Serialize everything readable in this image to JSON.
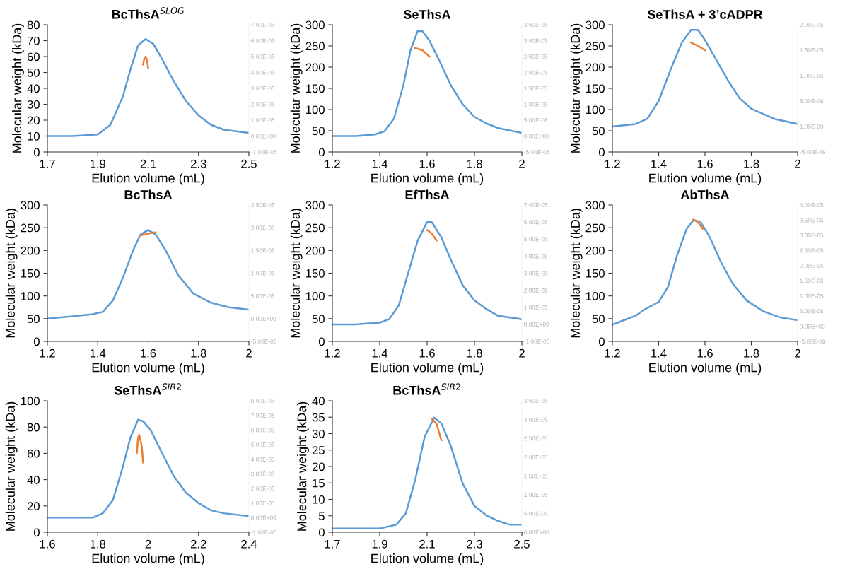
{
  "chart_data": [
    {
      "type": "line",
      "title": "BcThsA$^{SLOG}$",
      "xlabel": "Elution volume (mL)",
      "ylabel": "Molecular weight (kDa)",
      "grid": false,
      "xlim": [
        1.7,
        2.5
      ],
      "xticks": [
        1.7,
        1.9,
        2.1,
        2.3,
        2.5
      ],
      "ylim": [
        0,
        80
      ],
      "yticks": [
        0,
        10,
        20,
        30,
        40,
        50,
        60,
        70,
        80
      ],
      "y2lim": [
        -1e-05,
        7e-05
      ],
      "y2ticks": [
        {
          "value": -1e-05,
          "label": "-1.00E-05"
        },
        {
          "value": 0,
          "label": "0.00E+00"
        },
        {
          "value": 1e-05,
          "label": "1.00E-05"
        },
        {
          "value": 2e-05,
          "label": "2.00E-05"
        },
        {
          "value": 3e-05,
          "label": "3.00E-05"
        },
        {
          "value": 4e-05,
          "label": "4.00E-05"
        },
        {
          "value": 5e-05,
          "label": "5.00E-05"
        },
        {
          "value": 6e-05,
          "label": "6.00E-05"
        },
        {
          "value": 7e-05,
          "label": "7.00E-05"
        }
      ],
      "series": [
        {
          "color": "#5b9bd5",
          "axis": "y2",
          "x": [
            1.7,
            1.8,
            1.9,
            1.95,
            2.0,
            2.03,
            2.06,
            2.09,
            2.12,
            2.15,
            2.2,
            2.25,
            2.3,
            2.35,
            2.4,
            2.45,
            2.5
          ],
          "values": [
            0,
            0,
            1e-06,
            7e-06,
            2.5e-05,
            4.2e-05,
            5.7e-05,
            6.1e-05,
            5.8e-05,
            5e-05,
            3.5e-05,
            2.2e-05,
            1.3e-05,
            7e-06,
            4e-06,
            3e-06,
            2e-06
          ]
        },
        {
          "color": "#ed7d31",
          "axis": "y",
          "x": [
            2.08,
            2.085,
            2.09,
            2.095,
            2.1
          ],
          "values": [
            55,
            59,
            60,
            58,
            53
          ]
        }
      ]
    },
    {
      "type": "line",
      "title": "SeThsA",
      "xlabel": "Elution volume (mL)",
      "ylabel": "Molecular weight (kDa)",
      "grid": false,
      "xlim": [
        1.2,
        2
      ],
      "xticks": [
        1.2,
        1.4,
        1.6,
        1.8,
        2
      ],
      "ylim": [
        0,
        300
      ],
      "yticks": [
        0,
        50,
        100,
        150,
        200,
        250,
        300
      ],
      "y2lim": [
        -5e-06,
        3.5e-05
      ],
      "y2ticks": [
        {
          "value": -5e-06,
          "label": "-5.00E-06"
        },
        {
          "value": 0,
          "label": "0.00E+00"
        },
        {
          "value": 5e-06,
          "label": "5.00E-06"
        },
        {
          "value": 1e-05,
          "label": "1.00E-05"
        },
        {
          "value": 1.5e-05,
          "label": "1.50E-05"
        },
        {
          "value": 2e-05,
          "label": "2.00E-05"
        },
        {
          "value": 2.5e-05,
          "label": "2.50E-05"
        },
        {
          "value": 3e-05,
          "label": "3.00E-05"
        },
        {
          "value": 3.5e-05,
          "label": "3.50E-05"
        }
      ],
      "series": [
        {
          "color": "#5b9bd5",
          "axis": "y2",
          "x": [
            1.2,
            1.3,
            1.38,
            1.42,
            1.46,
            1.5,
            1.53,
            1.56,
            1.58,
            1.61,
            1.65,
            1.7,
            1.75,
            1.8,
            1.85,
            1.9,
            2.0
          ],
          "values": [
            0,
            0,
            5e-07,
            1.5e-06,
            5.5e-06,
            1.6e-05,
            2.7e-05,
            3.3e-05,
            3.3e-05,
            3e-05,
            2.4e-05,
            1.6e-05,
            1e-05,
            6e-06,
            4e-06,
            2.5e-06,
            1e-06
          ]
        },
        {
          "color": "#ed7d31",
          "axis": "y",
          "x": [
            1.55,
            1.58,
            1.61
          ],
          "values": [
            245,
            240,
            225
          ]
        }
      ]
    },
    {
      "type": "line",
      "title": "SeThsA + 3’cADPR",
      "xlabel": "Elution volume (mL)",
      "ylabel": "Molecular weight (kDa)",
      "grid": false,
      "xlim": [
        1.2,
        2
      ],
      "xticks": [
        1.2,
        1.4,
        1.6,
        1.8,
        2
      ],
      "ylim": [
        0,
        300
      ],
      "yticks": [
        0,
        50,
        100,
        150,
        200,
        250,
        300
      ],
      "y2lim": [
        -5e-06,
        2e-05
      ],
      "y2ticks": [
        {
          "value": -5e-06,
          "label": "-5.00E-06"
        },
        {
          "value": 0,
          "label": "1.00E-20"
        },
        {
          "value": 5e-06,
          "label": "5.00E-06"
        },
        {
          "value": 1e-05,
          "label": "1.00E-05"
        },
        {
          "value": 1.5e-05,
          "label": "1.50E-05"
        },
        {
          "value": 2e-05,
          "label": "2.00E-05"
        }
      ],
      "series": [
        {
          "color": "#5b9bd5",
          "axis": "y2",
          "x": [
            1.2,
            1.3,
            1.35,
            1.4,
            1.45,
            1.5,
            1.54,
            1.57,
            1.6,
            1.65,
            1.7,
            1.75,
            1.8,
            1.9,
            2.0
          ],
          "values": [
            0,
            5e-07,
            1.5e-06,
            5e-06,
            1.1e-05,
            1.65e-05,
            1.9e-05,
            1.9e-05,
            1.7e-05,
            1.3e-05,
            9e-06,
            5.5e-06,
            3.5e-06,
            1.5e-06,
            5e-07
          ]
        },
        {
          "color": "#ed7d31",
          "axis": "y",
          "x": [
            1.54,
            1.57,
            1.6
          ],
          "values": [
            258,
            250,
            240
          ]
        }
      ]
    },
    {
      "type": "line",
      "title": "BcThsA",
      "xlabel": "Elution volume (mL)",
      "ylabel": "Molecular weight (kDa)",
      "grid": false,
      "xlim": [
        1.2,
        2
      ],
      "xticks": [
        1.2,
        1.4,
        1.6,
        1.8,
        2
      ],
      "ylim": [
        0,
        300
      ],
      "yticks": [
        0,
        50,
        100,
        150,
        200,
        250,
        300
      ],
      "y2lim": [
        -5e-06,
        2.5e-05
      ],
      "y2ticks": [
        {
          "value": -5e-06,
          "label": "-5.00E-06"
        },
        {
          "value": 0,
          "label": "0.00E+00"
        },
        {
          "value": 5e-06,
          "label": "5.00E-06"
        },
        {
          "value": 1e-05,
          "label": "1.00E-05"
        },
        {
          "value": 1.5e-05,
          "label": "1.50E-05"
        },
        {
          "value": 2e-05,
          "label": "2.00E-05"
        },
        {
          "value": 2.5e-05,
          "label": "2.50E-05"
        }
      ],
      "series": [
        {
          "color": "#5b9bd5",
          "axis": "y2",
          "x": [
            1.2,
            1.3,
            1.38,
            1.42,
            1.46,
            1.5,
            1.54,
            1.57,
            1.6,
            1.63,
            1.67,
            1.72,
            1.78,
            1.85,
            1.92,
            2.0
          ],
          "values": [
            0,
            5e-07,
            1e-06,
            1.5e-06,
            4e-06,
            9e-06,
            1.5e-05,
            1.85e-05,
            1.95e-05,
            1.85e-05,
            1.5e-05,
            9.5e-06,
            5.5e-06,
            3.5e-06,
            2.5e-06,
            2e-06
          ]
        },
        {
          "color": "#ed7d31",
          "axis": "y",
          "x": [
            1.57,
            1.6,
            1.63
          ],
          "values": [
            233,
            237,
            240
          ]
        }
      ]
    },
    {
      "type": "line",
      "title": "EfThsA",
      "xlabel": "Elution volume (mL)",
      "ylabel": "Molecular weight (kDa)",
      "grid": false,
      "xlim": [
        1.2,
        2
      ],
      "xticks": [
        1.2,
        1.4,
        1.6,
        1.8,
        2
      ],
      "ylim": [
        0,
        300
      ],
      "yticks": [
        0,
        50,
        100,
        150,
        200,
        250,
        300
      ],
      "y2lim": [
        -1e-05,
        7e-05
      ],
      "y2ticks": [
        {
          "value": -1e-05,
          "label": "-1.00E-05"
        },
        {
          "value": 0,
          "label": "0.00E+00"
        },
        {
          "value": 1e-05,
          "label": "1.00E-05"
        },
        {
          "value": 2e-05,
          "label": "2.00E-05"
        },
        {
          "value": 3e-05,
          "label": "3.00E-05"
        },
        {
          "value": 4e-05,
          "label": "4.00E-05"
        },
        {
          "value": 5e-05,
          "label": "5.00E-05"
        },
        {
          "value": 6e-05,
          "label": "6.00E-05"
        },
        {
          "value": 7e-05,
          "label": "7.00E-05"
        }
      ],
      "series": [
        {
          "color": "#5b9bd5",
          "axis": "y2",
          "x": [
            1.2,
            1.3,
            1.4,
            1.44,
            1.48,
            1.52,
            1.56,
            1.6,
            1.62,
            1.66,
            1.7,
            1.75,
            1.8,
            1.85,
            1.9,
            2.0
          ],
          "values": [
            0,
            0,
            1e-06,
            3e-06,
            1.1e-05,
            3e-05,
            4.9e-05,
            6e-05,
            6e-05,
            5.1e-05,
            3.8e-05,
            2.3e-05,
            1.4e-05,
            9e-06,
            5e-06,
            3e-06
          ]
        },
        {
          "color": "#ed7d31",
          "axis": "y",
          "x": [
            1.6,
            1.62,
            1.64
          ],
          "values": [
            245,
            237,
            222
          ]
        }
      ]
    },
    {
      "type": "line",
      "title": "AbThsA",
      "xlabel": "Elution volume (mL)",
      "ylabel": "Molecular weight (kDa)",
      "grid": false,
      "xlim": [
        1.2,
        2
      ],
      "xticks": [
        1.2,
        1.4,
        1.6,
        1.8,
        2
      ],
      "ylim": [
        0,
        300
      ],
      "yticks": [
        0,
        50,
        100,
        150,
        200,
        250,
        300
      ],
      "y2lim": [
        -5e-06,
        4e-05
      ],
      "y2ticks": [
        {
          "value": -5e-06,
          "label": "-5.00E-06"
        },
        {
          "value": 0,
          "label": "0.00E+00"
        },
        {
          "value": 5e-06,
          "label": "5.00E-06"
        },
        {
          "value": 1e-05,
          "label": "1.00E-05"
        },
        {
          "value": 1.5e-05,
          "label": "1.50E-05"
        },
        {
          "value": 2e-05,
          "label": "2.00E-05"
        },
        {
          "value": 2.5e-05,
          "label": "2.50E-05"
        },
        {
          "value": 3e-05,
          "label": "3.00E-05"
        },
        {
          "value": 3.5e-05,
          "label": "3.50E-05"
        },
        {
          "value": 4e-05,
          "label": "4.00E-05"
        }
      ],
      "series": [
        {
          "color": "#5b9bd5",
          "axis": "y2",
          "x": [
            1.2,
            1.25,
            1.3,
            1.35,
            1.4,
            1.44,
            1.48,
            1.52,
            1.55,
            1.58,
            1.62,
            1.67,
            1.72,
            1.78,
            1.85,
            1.92,
            2.0
          ],
          "values": [
            5e-07,
            2e-06,
            3.5e-06,
            6e-06,
            8e-06,
            1.3e-05,
            2.35e-05,
            3.2e-05,
            3.5e-05,
            3.45e-05,
            2.95e-05,
            2.1e-05,
            1.4e-05,
            8.5e-06,
            5e-06,
            3e-06,
            2e-06
          ]
        },
        {
          "color": "#ed7d31",
          "axis": "y",
          "x": [
            1.55,
            1.57,
            1.59
          ],
          "values": [
            268,
            262,
            248
          ]
        }
      ]
    },
    {
      "type": "line",
      "title": "SeThsA$^{SIR2}$",
      "xlabel": "Elution volume (mL)",
      "ylabel": "Molecular weight (kDa)",
      "grid": false,
      "xlim": [
        1.6,
        2.4
      ],
      "xticks": [
        1.6,
        1.8,
        2,
        2.2,
        2.4
      ],
      "ylim": [
        0,
        100
      ],
      "yticks": [
        0,
        20,
        40,
        60,
        80,
        100
      ],
      "y2lim": [
        -1e-05,
        8e-05
      ],
      "y2ticks": [
        {
          "value": -1e-05,
          "label": "-1.00E-05"
        },
        {
          "value": 0,
          "label": "0.00E+00"
        },
        {
          "value": 1e-05,
          "label": "1.00E-05"
        },
        {
          "value": 2e-05,
          "label": "2.00E-05"
        },
        {
          "value": 3e-05,
          "label": "3.00E-05"
        },
        {
          "value": 4e-05,
          "label": "4.00E-05"
        },
        {
          "value": 5e-05,
          "label": "5.00E-05"
        },
        {
          "value": 6e-05,
          "label": "6.00E-05"
        },
        {
          "value": 7e-05,
          "label": "7.00E-05"
        },
        {
          "value": 8e-05,
          "label": "8.00E-05"
        }
      ],
      "series": [
        {
          "color": "#5b9bd5",
          "axis": "y2",
          "x": [
            1.6,
            1.7,
            1.78,
            1.82,
            1.86,
            1.9,
            1.93,
            1.96,
            1.98,
            2.01,
            2.05,
            2.1,
            2.15,
            2.2,
            2.25,
            2.3,
            2.4
          ],
          "values": [
            0,
            0,
            0,
            3e-06,
            1.2e-05,
            3.5e-05,
            5.5e-05,
            6.7e-05,
            6.6e-05,
            6e-05,
            4.6e-05,
            2.9e-05,
            1.7e-05,
            1e-05,
            5e-06,
            3e-06,
            1e-06
          ]
        },
        {
          "color": "#ed7d31",
          "axis": "y",
          "x": [
            1.955,
            1.96,
            1.965,
            1.975,
            1.98
          ],
          "values": [
            60,
            72,
            74,
            65,
            53
          ]
        }
      ]
    },
    {
      "type": "line",
      "title": "BcThsA$^{SIR2}$",
      "xlabel": "Elution volume (mL)",
      "ylabel": "Molecular weight (kDa)",
      "grid": false,
      "xlim": [
        1.7,
        2.5
      ],
      "xticks": [
        1.7,
        1.9,
        2.1,
        2.3,
        2.5
      ],
      "ylim": [
        0,
        40
      ],
      "yticks": [
        0,
        5,
        10,
        15,
        20,
        25,
        30,
        35,
        40
      ],
      "y2lim": [
        0,
        3.5e-05
      ],
      "y2ticks": [
        {
          "value": 0,
          "label": "0.00E+00"
        },
        {
          "value": 5e-06,
          "label": "5.00E-06"
        },
        {
          "value": 1e-05,
          "label": "1.00E-05"
        },
        {
          "value": 1.5e-05,
          "label": "1.50E-05"
        },
        {
          "value": 2e-05,
          "label": "2.00E-05"
        },
        {
          "value": 2.5e-05,
          "label": "2.50E-05"
        },
        {
          "value": 3e-05,
          "label": "3.00E-05"
        },
        {
          "value": 3.5e-05,
          "label": "3.50E-05"
        }
      ],
      "series": [
        {
          "color": "#5b9bd5",
          "axis": "y2",
          "x": [
            1.7,
            1.8,
            1.9,
            1.97,
            2.01,
            2.05,
            2.09,
            2.13,
            2.16,
            2.2,
            2.25,
            2.3,
            2.35,
            2.4,
            2.45,
            2.48,
            2.5
          ],
          "values": [
            1e-06,
            1e-06,
            1e-06,
            2e-06,
            5e-06,
            1.4e-05,
            2.55e-05,
            3.05e-05,
            2.9e-05,
            2.3e-05,
            1.3e-05,
            7e-06,
            4.5e-06,
            3e-06,
            2e-06,
            2e-06,
            2e-06
          ]
        },
        {
          "color": "#ed7d31",
          "axis": "y",
          "x": [
            2.12,
            2.14,
            2.16
          ],
          "values": [
            34.5,
            33,
            28
          ]
        }
      ]
    }
  ]
}
